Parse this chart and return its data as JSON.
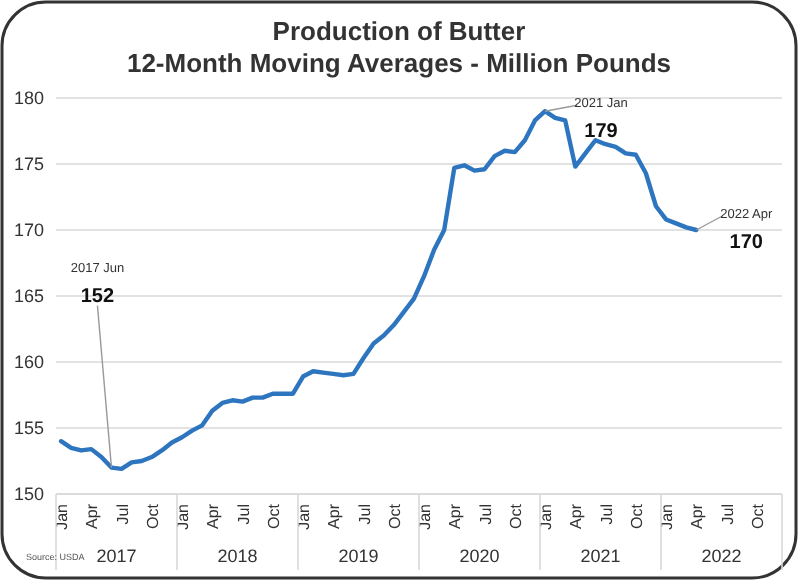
{
  "chart_data": {
    "type": "line",
    "title": "Production of Butter",
    "subtitle": "12-Month Moving Averages - Million Pounds",
    "categories": [
      "Jan",
      null,
      null,
      "Apr",
      null,
      null,
      "Jul",
      null,
      null,
      "Oct",
      null,
      null,
      "Jan",
      null,
      null,
      "Apr",
      null,
      null,
      "Jul",
      null,
      null,
      "Oct",
      null,
      null,
      "Jan",
      null,
      null,
      "Apr",
      null,
      null,
      "Jul",
      null,
      null,
      "Oct",
      null,
      null,
      "Jan",
      null,
      null,
      "Apr",
      null,
      null,
      "Jul",
      null,
      null,
      "Oct",
      null,
      null,
      "Jan",
      null,
      null,
      "Apr",
      null,
      null,
      "Jul",
      null,
      null,
      "Oct",
      null,
      null,
      "Jan",
      null,
      null,
      "Apr",
      null,
      null,
      "Jul",
      null,
      null,
      "Oct",
      null,
      null
    ],
    "series": [
      {
        "color": "#2e75c0",
        "values": [
          154,
          153.5,
          153.3,
          153.4,
          152.8,
          152,
          151.9,
          152.4,
          152.5,
          152.8,
          153.3,
          153.9,
          154.3,
          154.8,
          155.2,
          156.3,
          156.9,
          157.1,
          157,
          157.3,
          157.3,
          157.6,
          157.6,
          157.6,
          158.9,
          159.3,
          159.2,
          159.1,
          159,
          159.1,
          160.3,
          161.4,
          162,
          162.8,
          163.8,
          164.8,
          166.5,
          168.5,
          170,
          174.7,
          174.9,
          174.5,
          174.6,
          175.6,
          176,
          175.9,
          176.8,
          178.3,
          179,
          178.5,
          178.3,
          174.8,
          175.8,
          176.8,
          176.5,
          176.3,
          175.8,
          175.7,
          174.3,
          171.8,
          170.8,
          170.5,
          170.2,
          170,
          null,
          null,
          null,
          null,
          null,
          null,
          null,
          null
        ],
        "value_labels": [
          null,
          null,
          null,
          null,
          null,
          "152",
          null,
          null,
          null,
          null,
          null,
          null,
          null,
          null,
          null,
          null,
          null,
          null,
          null,
          null,
          null,
          null,
          null,
          null,
          null,
          null,
          null,
          null,
          null,
          null,
          null,
          null,
          null,
          null,
          null,
          null,
          null,
          null,
          null,
          null,
          null,
          null,
          null,
          null,
          null,
          null,
          null,
          null,
          "179",
          null,
          null,
          null,
          null,
          null,
          null,
          null,
          null,
          null,
          null,
          null,
          null,
          null,
          null,
          "170",
          null,
          null,
          null,
          null,
          null,
          null,
          null,
          null
        ]
      }
    ],
    "ylim": [
      150,
      180
    ],
    "yticks": [
      150,
      155,
      160,
      165,
      170,
      175,
      180
    ],
    "grid": "y",
    "marker": "none",
    "line_style": "solid",
    "annotations": [
      "2017 Jun",
      "2021 Jan",
      "2022 Apr",
      "Source: USDA",
      "2017",
      "2018",
      "2019",
      "2020",
      "2021",
      "2022"
    ]
  }
}
